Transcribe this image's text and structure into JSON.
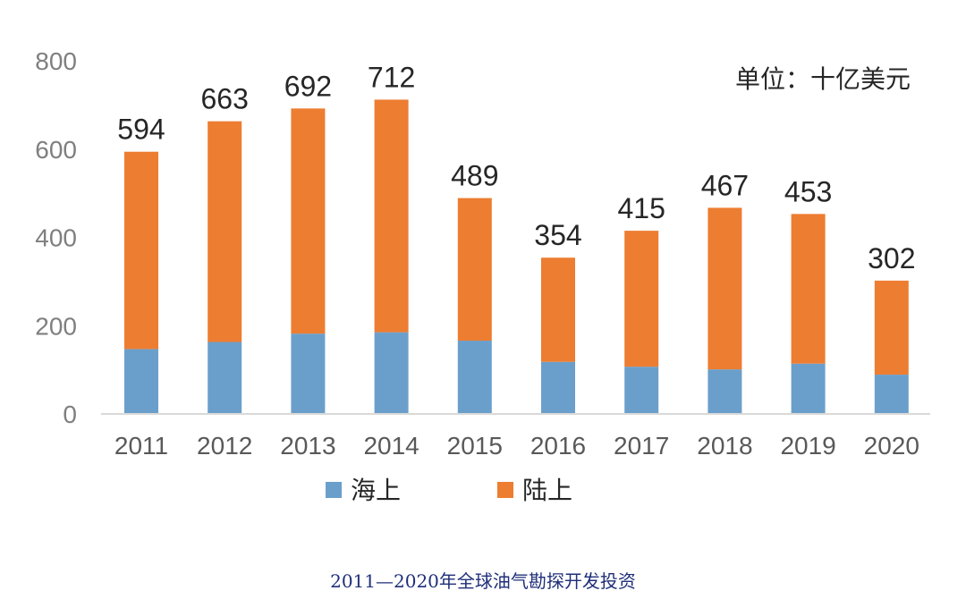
{
  "chart_data": {
    "type": "bar",
    "stacked": true,
    "categories": [
      "2011",
      "2012",
      "2013",
      "2014",
      "2015",
      "2016",
      "2017",
      "2018",
      "2019",
      "2020"
    ],
    "series": [
      {
        "name": "海上",
        "color": "#6b9fcb",
        "values": [
          147,
          163,
          182,
          185,
          166,
          118,
          107,
          101,
          114,
          89
        ]
      },
      {
        "name": "陆上",
        "color": "#ed7d31",
        "values": [
          447,
          500,
          510,
          527,
          323,
          236,
          308,
          366,
          339,
          213
        ]
      }
    ],
    "totals": [
      "594",
      "663",
      "692",
      "712",
      "489",
      "354",
      "415",
      "467",
      "453",
      "302"
    ],
    "ylim": [
      0,
      800
    ],
    "yticks": [
      "0",
      "200",
      "400",
      "600",
      "800"
    ],
    "unit": "单位：十亿美元",
    "grid": false,
    "legend_position": "bottom"
  },
  "caption": "2011—2020年全球油气勘探开发投资"
}
